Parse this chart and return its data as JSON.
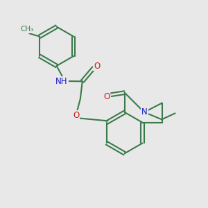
{
  "bg_color": "#e8e8e8",
  "bond_color": "#3a7a4a",
  "bond_width": 1.5,
  "N_color": "#1a1acc",
  "O_color": "#cc1a1a",
  "font_size": 8.5,
  "xlim": [
    0,
    10
  ],
  "ylim": [
    0,
    10
  ]
}
